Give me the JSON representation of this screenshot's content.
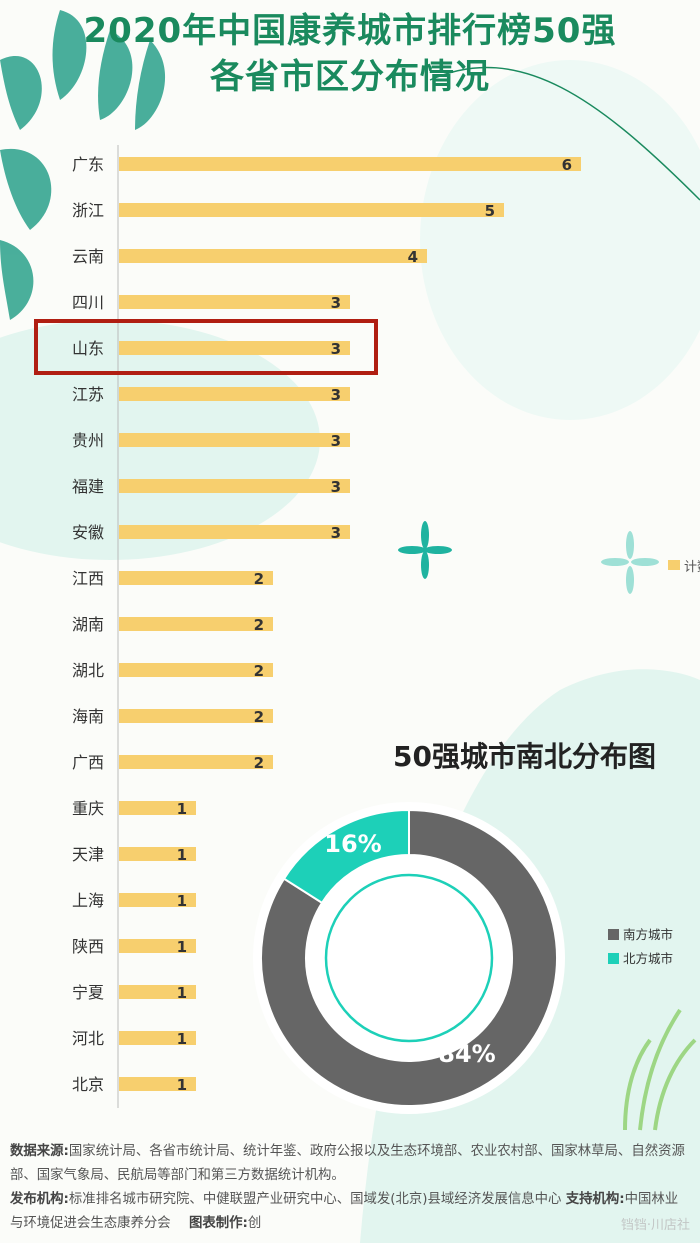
{
  "title_line1": "2020年中国康养城市排行榜50强",
  "title_line2": "各省市区分布情况",
  "colors": {
    "bar": "#f7cf6e",
    "title": "#1a8a5e",
    "south": "#666666",
    "north": "#1dd0b8",
    "highlight": "#b01e12"
  },
  "chart_data": [
    {
      "type": "bar",
      "orientation": "horizontal",
      "categories": [
        "广东",
        "浙江",
        "云南",
        "四川",
        "山东",
        "江苏",
        "贵州",
        "福建",
        "安徽",
        "江西",
        "湖南",
        "湖北",
        "海南",
        "广西",
        "重庆",
        "天津",
        "上海",
        "陕西",
        "宁夏",
        "河北",
        "北京"
      ],
      "series": [
        {
          "name": "计数",
          "values": [
            6,
            5,
            4,
            3,
            3,
            3,
            3,
            3,
            3,
            2,
            2,
            2,
            2,
            2,
            1,
            1,
            1,
            1,
            1,
            1,
            1
          ]
        }
      ],
      "xlim": [
        0,
        6
      ],
      "legend": "right",
      "highlighted_category": "山东"
    },
    {
      "type": "pie",
      "title": "50强城市南北分布图",
      "labels": [
        "南方城市",
        "北方城市"
      ],
      "values": [
        84,
        16
      ],
      "value_labels": [
        "84%",
        "16%"
      ]
    }
  ],
  "footer": {
    "source_key": "数据来源:",
    "source_text": "国家统计局、各省市统计局、统计年鉴、政府公报以及生态环境部、农业农村部、国家林草局、自然资源部、国家气象局、民航局等部门和第三方数据统计机构。",
    "publisher_key": "发布机构:",
    "publisher_text": "标准排名城市研究院、中健联盟产业研究中心、国域发(北京)县域经济发展信息中心",
    "support_key": "支持机构:",
    "support_text": "中国林业与环境促进会生态康养分会",
    "maker_key": "图表制作:",
    "maker_text": "创"
  },
  "watermark": "铛铛·川店社"
}
